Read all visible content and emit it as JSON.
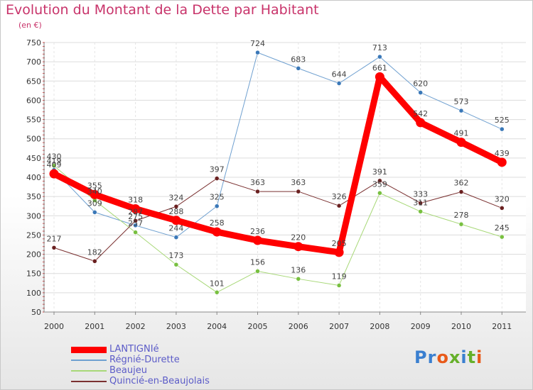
{
  "title": "Evolution du Montant de la Dette par Habitant",
  "subtitle": "(en €)",
  "logo": {
    "text": "Proxiti",
    "colors": [
      "#3a7fd0",
      "#3a7fd0",
      "#e85a1a",
      "#66b02a",
      "#3a7fd0",
      "#66b02a",
      "#e85a1a"
    ]
  },
  "chart_data": {
    "type": "line",
    "title": "Evolution du Montant de la Dette par Habitant",
    "ylabel": "(en €)",
    "x": [
      "2000",
      "2001",
      "2002",
      "2003",
      "2004",
      "2005",
      "2006",
      "2007",
      "2008",
      "2009",
      "2010",
      "2011"
    ],
    "ylim": [
      50,
      750
    ],
    "yticks": [
      50,
      100,
      150,
      200,
      250,
      300,
      350,
      400,
      450,
      500,
      550,
      600,
      650,
      700,
      750
    ],
    "grid": true,
    "legend_position": "bottom-left",
    "series": [
      {
        "name": "LANTIGNIé",
        "color": "#ff0000",
        "width": 9,
        "values": [
          409,
          355,
          318,
          288,
          258,
          236,
          220,
          205,
          661,
          542,
          491,
          439
        ]
      },
      {
        "name": "Régnié-Durette",
        "color": "#6fa0d0",
        "width": 1,
        "values": [
          419,
          309,
          275,
          244,
          325,
          724,
          683,
          644,
          713,
          620,
          573,
          525
        ]
      },
      {
        "name": "Beaujeu",
        "color": "#a8d878",
        "width": 1,
        "values": [
          430,
          340,
          257,
          173,
          101,
          156,
          136,
          119,
          359,
          311,
          278,
          245
        ]
      },
      {
        "name": "Quincié-en-Beaujolais",
        "color": "#7a3030",
        "width": 1,
        "values": [
          217,
          182,
          287,
          324,
          397,
          363,
          363,
          326,
          391,
          333,
          362,
          320
        ]
      }
    ]
  }
}
